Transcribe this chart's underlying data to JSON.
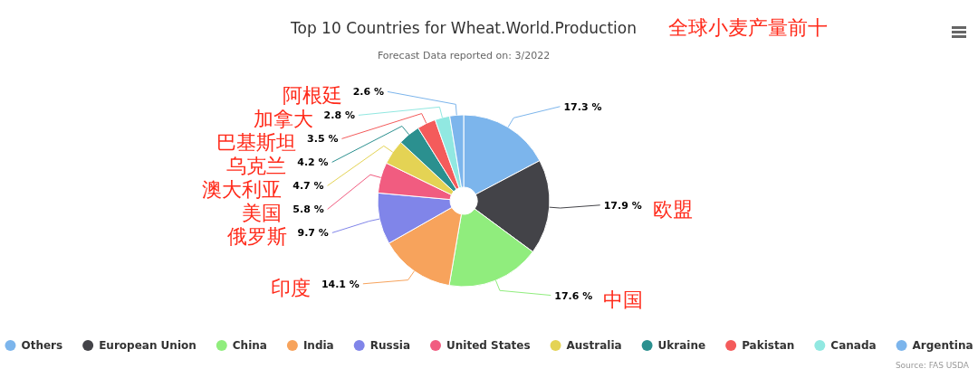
{
  "chart_data": {
    "type": "donut",
    "title": "Top 10 Countries for Wheat.World.Production",
    "subtitle": "Forecast Data reported on: 3/2022",
    "categories": [
      "Others",
      "European Union",
      "China",
      "India",
      "Russia",
      "United States",
      "Australia",
      "Ukraine",
      "Pakistan",
      "Canada",
      "Argentina"
    ],
    "values": [
      17.3,
      17.9,
      17.6,
      14.1,
      9.7,
      5.8,
      4.7,
      4.2,
      3.5,
      2.8,
      2.6
    ],
    "value_labels": [
      "17.3 %",
      "17.9 %",
      "17.6 %",
      "14.1 %",
      "9.7 %",
      "5.8 %",
      "4.7 %",
      "4.2 %",
      "3.5 %",
      "2.8 %",
      "2.6 %"
    ],
    "colors": [
      "#7cb5ec",
      "#434348",
      "#90ed7d",
      "#f7a35c",
      "#8085e9",
      "#f15c80",
      "#e4d354",
      "#2b908f",
      "#f45b5b",
      "#91e8e1",
      "#7cb5ec"
    ],
    "legend": "bottom",
    "annotations": [
      "全球小麦产量前十",
      {
        "text": "欧盟",
        "x": "European Union"
      },
      {
        "text": "中国",
        "x": "China"
      },
      {
        "text": "印度",
        "x": "India"
      },
      {
        "text": "俄罗斯",
        "x": "Russia"
      },
      {
        "text": "美国",
        "x": "United States"
      },
      {
        "text": "澳大利亚",
        "x": "Australia"
      },
      {
        "text": "乌克兰",
        "x": "Ukraine"
      },
      {
        "text": "巴基斯坦",
        "x": "Pakistan"
      },
      {
        "text": "加拿大",
        "x": "Canada"
      },
      {
        "text": "阿根廷",
        "x": "Argentina"
      },
      "Source: FAS USDA"
    ]
  }
}
